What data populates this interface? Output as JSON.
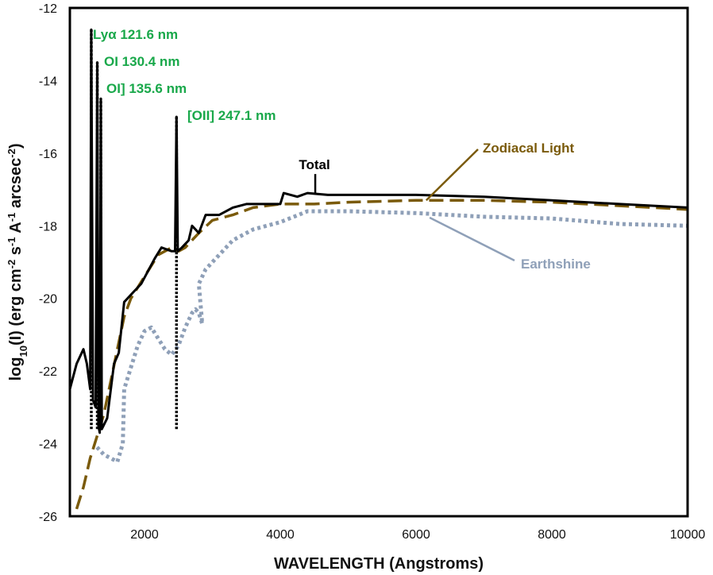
{
  "chart_data": {
    "type": "line",
    "xlabel": "WAVELENGTH (Angstroms)",
    "ylabel_parts": {
      "pre": "log",
      "sub10": "10",
      "mid": "(I) (erg cm",
      "sup1": "-2",
      "mid2": " s",
      "sup2": "-1",
      "mid3": " A",
      "sup3": "-1",
      "mid4": " arcsec",
      "sup4": "-2",
      "post": ")"
    },
    "xlim": [
      900,
      10000
    ],
    "ylim": [
      -26,
      -12
    ],
    "x_ticks": [
      2000,
      4000,
      6000,
      8000,
      10000
    ],
    "y_ticks": [
      -26,
      -24,
      -22,
      -20,
      -18,
      -16,
      -14,
      -12
    ],
    "grid": false,
    "series": [
      {
        "name": "Total",
        "color": "#000000",
        "style": "solid",
        "points": [
          [
            900,
            -22.5
          ],
          [
            1000,
            -21.8
          ],
          [
            1100,
            -21.4
          ],
          [
            1150,
            -21.8
          ],
          [
            1200,
            -22.5
          ],
          [
            1215,
            -12.6
          ],
          [
            1240,
            -22.8
          ],
          [
            1280,
            -23.0
          ],
          [
            1304,
            -13.5
          ],
          [
            1320,
            -23.5
          ],
          [
            1340,
            -23.7
          ],
          [
            1356,
            -14.5
          ],
          [
            1370,
            -23.6
          ],
          [
            1450,
            -23.3
          ],
          [
            1550,
            -21.8
          ],
          [
            1620,
            -21.5
          ],
          [
            1700,
            -20.1
          ],
          [
            1800,
            -19.9
          ],
          [
            1950,
            -19.6
          ],
          [
            2150,
            -18.9
          ],
          [
            2250,
            -18.6
          ],
          [
            2400,
            -18.7
          ],
          [
            2450,
            -18.7
          ],
          [
            2471,
            -15.0
          ],
          [
            2490,
            -18.7
          ],
          [
            2550,
            -18.6
          ],
          [
            2650,
            -18.4
          ],
          [
            2700,
            -18.0
          ],
          [
            2800,
            -18.2
          ],
          [
            2900,
            -17.7
          ],
          [
            3100,
            -17.7
          ],
          [
            3300,
            -17.5
          ],
          [
            3500,
            -17.4
          ],
          [
            3800,
            -17.4
          ],
          [
            4000,
            -17.4
          ],
          [
            4050,
            -17.1
          ],
          [
            4250,
            -17.2
          ],
          [
            4400,
            -17.1
          ],
          [
            4700,
            -17.15
          ],
          [
            5500,
            -17.15
          ],
          [
            6000,
            -17.15
          ],
          [
            7000,
            -17.2
          ],
          [
            8000,
            -17.3
          ],
          [
            9000,
            -17.4
          ],
          [
            10000,
            -17.5
          ]
        ]
      },
      {
        "name": "Zodiacal Light",
        "color": "#7a5a0a",
        "style": "dashed",
        "points": [
          [
            1000,
            -25.8
          ],
          [
            1100,
            -25.2
          ],
          [
            1200,
            -24.4
          ],
          [
            1300,
            -23.8
          ],
          [
            1400,
            -23.2
          ],
          [
            1500,
            -22.3
          ],
          [
            1600,
            -21.4
          ],
          [
            1700,
            -20.5
          ],
          [
            1800,
            -20.0
          ],
          [
            2000,
            -19.4
          ],
          [
            2200,
            -18.8
          ],
          [
            2400,
            -18.6
          ],
          [
            2500,
            -18.7
          ],
          [
            2600,
            -18.6
          ],
          [
            2800,
            -18.2
          ],
          [
            3000,
            -17.85
          ],
          [
            3300,
            -17.7
          ],
          [
            3600,
            -17.5
          ],
          [
            4000,
            -17.4
          ],
          [
            4500,
            -17.4
          ],
          [
            5000,
            -17.35
          ],
          [
            6000,
            -17.3
          ],
          [
            7000,
            -17.3
          ],
          [
            8000,
            -17.35
          ],
          [
            9000,
            -17.45
          ],
          [
            10000,
            -17.55
          ]
        ]
      },
      {
        "name": "Earthshine",
        "color": "#8fa0b8",
        "style": "dotted",
        "points": [
          [
            1300,
            -24.1
          ],
          [
            1400,
            -24.3
          ],
          [
            1600,
            -24.5
          ],
          [
            1680,
            -24.0
          ],
          [
            1700,
            -22.5
          ],
          [
            1800,
            -21.9
          ],
          [
            1900,
            -21.3
          ],
          [
            2000,
            -20.9
          ],
          [
            2100,
            -20.8
          ],
          [
            2200,
            -21.1
          ],
          [
            2300,
            -21.4
          ],
          [
            2400,
            -21.55
          ],
          [
            2500,
            -21.3
          ],
          [
            2600,
            -20.8
          ],
          [
            2700,
            -20.4
          ],
          [
            2750,
            -20.3
          ],
          [
            2800,
            -20.4
          ],
          [
            2850,
            -20.7
          ],
          [
            2800,
            -19.6
          ],
          [
            2900,
            -19.2
          ],
          [
            3100,
            -18.8
          ],
          [
            3300,
            -18.4
          ],
          [
            3600,
            -18.1
          ],
          [
            4000,
            -17.9
          ],
          [
            4200,
            -17.75
          ],
          [
            4400,
            -17.6
          ],
          [
            4700,
            -17.6
          ],
          [
            5000,
            -17.6
          ],
          [
            6000,
            -17.65
          ],
          [
            7000,
            -17.75
          ],
          [
            8000,
            -17.8
          ],
          [
            9000,
            -17.95
          ],
          [
            10000,
            -18.0
          ]
        ]
      }
    ],
    "emission_lines": [
      {
        "label": "Lyα 121.6 nm",
        "x": 1216,
        "peak": -12.6
      },
      {
        "label": "OI 130.4 nm",
        "x": 1304,
        "peak": -13.5
      },
      {
        "label": "OI] 135.6 nm",
        "x": 1356,
        "peak": -14.5
      },
      {
        "label": "[OII] 247.1 nm",
        "x": 2471,
        "peak": -15.0
      }
    ],
    "annotations": [
      {
        "text": "Total",
        "color": "#000000",
        "target_x": 4550,
        "target_y": -17.1
      },
      {
        "text": "Zodiacal Light",
        "color": "#7a5a0a",
        "target_x": 6150,
        "target_y": -17.3
      },
      {
        "text": "Earthshine",
        "color": "#8fa0b8",
        "target_x": 6200,
        "target_y": -17.6
      }
    ]
  }
}
